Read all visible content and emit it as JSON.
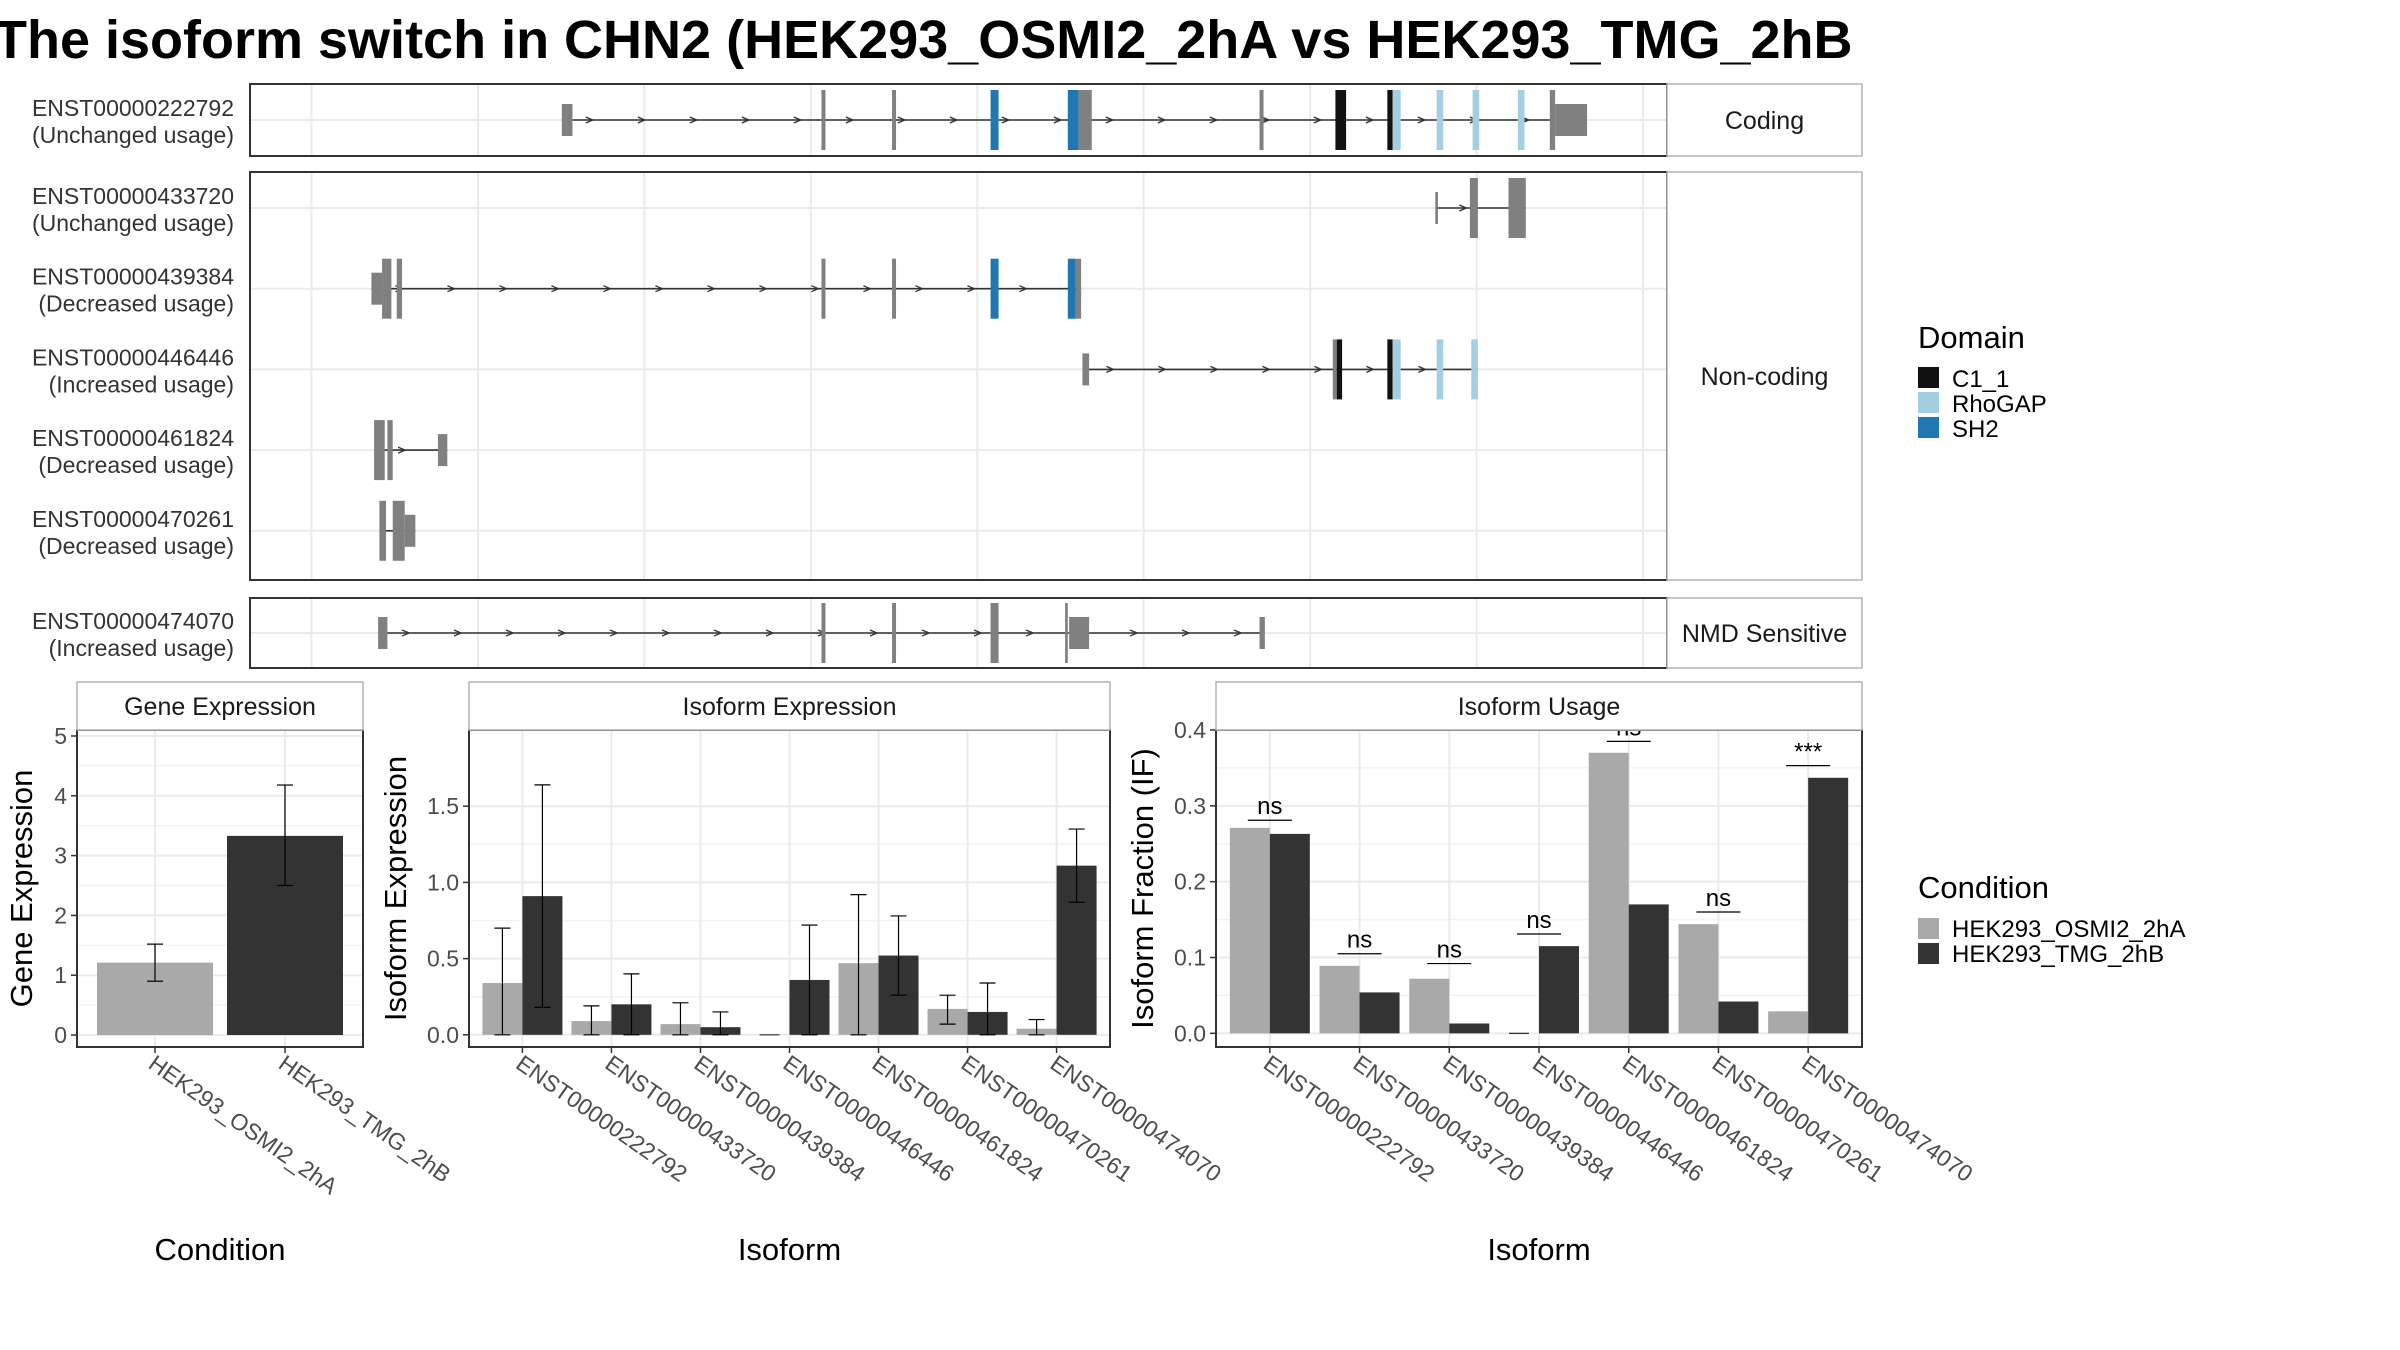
{
  "title": "The isoform switch in CHN2 (HEK293_OSMI2_2hA vs HEK293_TMG_2hB",
  "colors": {
    "exon": "#808080",
    "C1_1": "#111111",
    "RhoGAP": "#a6cee3",
    "SH2": "#1f78b4",
    "cond_a": "#a9a9a9",
    "cond_b": "#333333",
    "panel_border": "#333333",
    "strip_border": "#b3b3b3",
    "grid": "#ebebeb"
  },
  "legend_domain": {
    "title": "Domain",
    "items": [
      {
        "label": "C1_1",
        "color": "#111111"
      },
      {
        "label": "RhoGAP",
        "color": "#a6cee3"
      },
      {
        "label": "SH2",
        "color": "#1f78b4"
      }
    ]
  },
  "legend_condition": {
    "title": "Condition",
    "items": [
      {
        "label": "HEK293_OSMI2_2hA",
        "color": "#a9a9a9"
      },
      {
        "label": "HEK293_TMG_2hB",
        "color": "#333333"
      }
    ]
  },
  "chart_data": [
    {
      "type": "transcript_structure",
      "x_range": [
        0,
        100
      ],
      "groups": [
        {
          "label": "Coding",
          "transcripts": [
            {
              "id": "ENST00000222792",
              "usage": "(Unchanged usage)",
              "span": [
                18.8,
                93.4
              ],
              "exons": [
                {
                  "s": 18.8,
                  "e": 19.6,
                  "h": "s"
                },
                {
                  "s": 38.3,
                  "e": 38.6,
                  "h": "t"
                },
                {
                  "s": 43.6,
                  "e": 43.9,
                  "h": "t"
                },
                {
                  "s": 51.0,
                  "e": 51.6,
                  "h": "t",
                  "d": "SH2"
                },
                {
                  "s": 56.8,
                  "e": 57.6,
                  "h": "t",
                  "d": "SH2"
                },
                {
                  "s": 57.6,
                  "e": 58.6,
                  "h": "t"
                },
                {
                  "s": 71.2,
                  "e": 71.5,
                  "h": "t"
                },
                {
                  "s": 76.9,
                  "e": 77.7,
                  "h": "t",
                  "d": "C1_1"
                },
                {
                  "s": 80.8,
                  "e": 81.2,
                  "h": "t",
                  "d": "C1_1"
                },
                {
                  "s": 81.2,
                  "e": 81.8,
                  "h": "t",
                  "d": "RhoGAP"
                },
                {
                  "s": 84.5,
                  "e": 85.0,
                  "h": "t",
                  "d": "RhoGAP"
                },
                {
                  "s": 87.2,
                  "e": 87.7,
                  "h": "t",
                  "d": "RhoGAP"
                },
                {
                  "s": 90.6,
                  "e": 91.1,
                  "h": "t",
                  "d": "RhoGAP"
                },
                {
                  "s": 93.0,
                  "e": 93.4,
                  "h": "t"
                },
                {
                  "s": 93.4,
                  "e": 95.8,
                  "h": "s"
                }
              ]
            }
          ]
        },
        {
          "label": "Non-coding",
          "transcripts": [
            {
              "id": "ENST00000433720",
              "usage": "(Unchanged usage)",
              "span": [
                84.4,
                91.2
              ],
              "exons": [
                {
                  "s": 84.4,
                  "e": 84.6,
                  "h": "s"
                },
                {
                  "s": 87.0,
                  "e": 87.6,
                  "h": "t"
                },
                {
                  "s": 89.9,
                  "e": 91.2,
                  "h": "t"
                }
              ]
            },
            {
              "id": "ENST00000439384",
              "usage": "(Decreased usage)",
              "span": [
                4.5,
                57.8
              ],
              "exons": [
                {
                  "s": 4.5,
                  "e": 5.3,
                  "h": "s"
                },
                {
                  "s": 5.3,
                  "e": 6.0,
                  "h": "t"
                },
                {
                  "s": 6.4,
                  "e": 6.8,
                  "h": "t"
                },
                {
                  "s": 38.3,
                  "e": 38.6,
                  "h": "t"
                },
                {
                  "s": 43.6,
                  "e": 43.9,
                  "h": "t"
                },
                {
                  "s": 51.0,
                  "e": 51.6,
                  "h": "t",
                  "d": "SH2"
                },
                {
                  "s": 56.8,
                  "e": 57.4,
                  "h": "t",
                  "d": "SH2"
                },
                {
                  "s": 57.4,
                  "e": 57.8,
                  "h": "t"
                }
              ]
            },
            {
              "id": "ENST00000446446",
              "usage": "(Increased usage)",
              "span": [
                57.9,
                87.6
              ],
              "exons": [
                {
                  "s": 57.9,
                  "e": 58.4,
                  "h": "s"
                },
                {
                  "s": 76.7,
                  "e": 77.0,
                  "h": "t"
                },
                {
                  "s": 77.0,
                  "e": 77.4,
                  "h": "t",
                  "d": "C1_1"
                },
                {
                  "s": 80.8,
                  "e": 81.2,
                  "h": "t",
                  "d": "C1_1"
                },
                {
                  "s": 81.2,
                  "e": 81.8,
                  "h": "t",
                  "d": "RhoGAP"
                },
                {
                  "s": 84.5,
                  "e": 85.0,
                  "h": "t",
                  "d": "RhoGAP"
                },
                {
                  "s": 87.1,
                  "e": 87.6,
                  "h": "t",
                  "d": "RhoGAP"
                }
              ]
            },
            {
              "id": "ENST00000461824",
              "usage": "(Decreased usage)",
              "span": [
                4.7,
                10.2
              ],
              "exons": [
                {
                  "s": 4.7,
                  "e": 5.5,
                  "h": "t"
                },
                {
                  "s": 5.7,
                  "e": 6.1,
                  "h": "t"
                },
                {
                  "s": 9.5,
                  "e": 10.2,
                  "h": "s"
                }
              ]
            },
            {
              "id": "ENST00000470261",
              "usage": "(Decreased usage)",
              "span": [
                5.1,
                7.8
              ],
              "exons": [
                {
                  "s": 5.1,
                  "e": 5.6,
                  "h": "t"
                },
                {
                  "s": 6.1,
                  "e": 7.0,
                  "h": "t"
                },
                {
                  "s": 7.0,
                  "e": 7.8,
                  "h": "s"
                }
              ]
            }
          ]
        },
        {
          "label": "NMD Sensitive",
          "transcripts": [
            {
              "id": "ENST00000474070",
              "usage": "(Increased usage)",
              "span": [
                5.0,
                71.5
              ],
              "exons": [
                {
                  "s": 5.0,
                  "e": 5.7,
                  "h": "s"
                },
                {
                  "s": 38.3,
                  "e": 38.6,
                  "h": "t"
                },
                {
                  "s": 43.6,
                  "e": 43.9,
                  "h": "t"
                },
                {
                  "s": 51.0,
                  "e": 51.6,
                  "h": "t"
                },
                {
                  "s": 56.6,
                  "e": 56.8,
                  "h": "t"
                },
                {
                  "s": 56.9,
                  "e": 58.4,
                  "h": "s"
                },
                {
                  "s": 71.2,
                  "e": 71.6,
                  "h": "s"
                }
              ]
            }
          ]
        }
      ]
    },
    {
      "type": "bar",
      "title": "Gene Expression",
      "xlabel": "Condition",
      "ylabel": "Gene Expression",
      "ylim": [
        -0.2,
        5.1
      ],
      "yticks": [
        0,
        1,
        2,
        3,
        4,
        5
      ],
      "categories": [
        "HEK293_OSMI2_2hA",
        "HEK293_TMG_2hB"
      ],
      "values": [
        1.21,
        3.33
      ],
      "errors_low": [
        0.9,
        2.5
      ],
      "errors_high": [
        1.52,
        4.18
      ]
    },
    {
      "type": "bar",
      "title": "Isoform Expression",
      "xlabel": "Isoform",
      "ylabel": "Isoform Expression",
      "ylim": [
        -0.08,
        2.0
      ],
      "yticks": [
        "0.0",
        "0.5",
        "1.0",
        "1.5"
      ],
      "categories": [
        "ENST00000222792",
        "ENST00000433720",
        "ENST00000439384",
        "ENST00000446446",
        "ENST00000461824",
        "ENST00000470261",
        "ENST00000474070"
      ],
      "series": [
        {
          "name": "HEK293_OSMI2_2hA",
          "values": [
            0.34,
            0.09,
            0.07,
            0.0,
            0.47,
            0.17,
            0.04
          ],
          "err_low": [
            0.0,
            0.0,
            0.0,
            0.0,
            0.0,
            0.07,
            0.0
          ],
          "err_high": [
            0.7,
            0.19,
            0.21,
            0.0,
            0.92,
            0.26,
            0.1
          ]
        },
        {
          "name": "HEK293_TMG_2hB",
          "values": [
            0.91,
            0.2,
            0.05,
            0.36,
            0.52,
            0.15,
            1.11
          ],
          "err_low": [
            0.18,
            0.0,
            0.0,
            0.0,
            0.26,
            0.0,
            0.87
          ],
          "err_high": [
            1.64,
            0.4,
            0.15,
            0.72,
            0.78,
            0.34,
            1.35
          ]
        }
      ]
    },
    {
      "type": "bar",
      "title": "Isoform Usage",
      "xlabel": "Isoform",
      "ylabel": "Isoform Fraction (IF)",
      "ylim": [
        -0.018,
        0.4
      ],
      "yticks": [
        "0.0",
        "0.1",
        "0.2",
        "0.3",
        "0.4"
      ],
      "categories": [
        "ENST00000222792",
        "ENST00000433720",
        "ENST00000439384",
        "ENST00000446446",
        "ENST00000461824",
        "ENST00000470261",
        "ENST00000474070"
      ],
      "series": [
        {
          "name": "HEK293_OSMI2_2hA",
          "values": [
            0.271,
            0.089,
            0.072,
            0.0,
            0.37,
            0.144,
            0.029
          ]
        },
        {
          "name": "HEK293_TMG_2hB",
          "values": [
            0.263,
            0.054,
            0.013,
            0.115,
            0.17,
            0.042,
            0.337
          ]
        }
      ],
      "significance": [
        "ns",
        "ns",
        "ns",
        "ns",
        "ns",
        "ns",
        "***"
      ],
      "sig_y": [
        0.281,
        0.105,
        0.092,
        0.131,
        0.385,
        0.16,
        0.353
      ]
    }
  ]
}
